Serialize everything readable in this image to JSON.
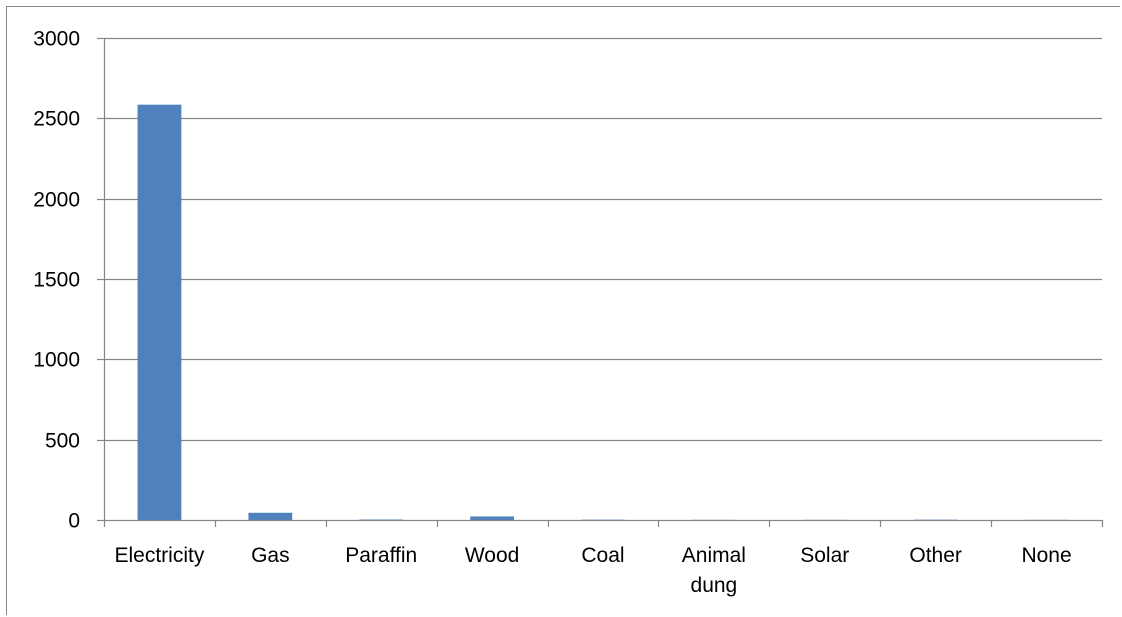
{
  "chart_data": {
    "type": "bar",
    "title": "",
    "xlabel": "",
    "ylabel": "",
    "categories": [
      "Electricity",
      "Gas",
      "Paraffin",
      "Wood",
      "Coal",
      "Animal dung",
      "Solar",
      "Other",
      "None"
    ],
    "category_label_lines": [
      [
        "Electricity"
      ],
      [
        "Gas"
      ],
      [
        "Paraffin"
      ],
      [
        "Wood"
      ],
      [
        "Coal"
      ],
      [
        "Animal",
        "dung"
      ],
      [
        "Solar"
      ],
      [
        "Other"
      ],
      [
        "None"
      ]
    ],
    "values": [
      2585,
      45,
      3,
      22,
      2,
      1,
      1,
      2,
      1
    ],
    "ylim": [
      0,
      3000
    ],
    "yticks": [
      0,
      500,
      1000,
      1500,
      2000,
      2500,
      3000
    ],
    "grid": true,
    "legend": "none",
    "bar_color": "#4F81BD",
    "gridline_color": "#868686"
  }
}
